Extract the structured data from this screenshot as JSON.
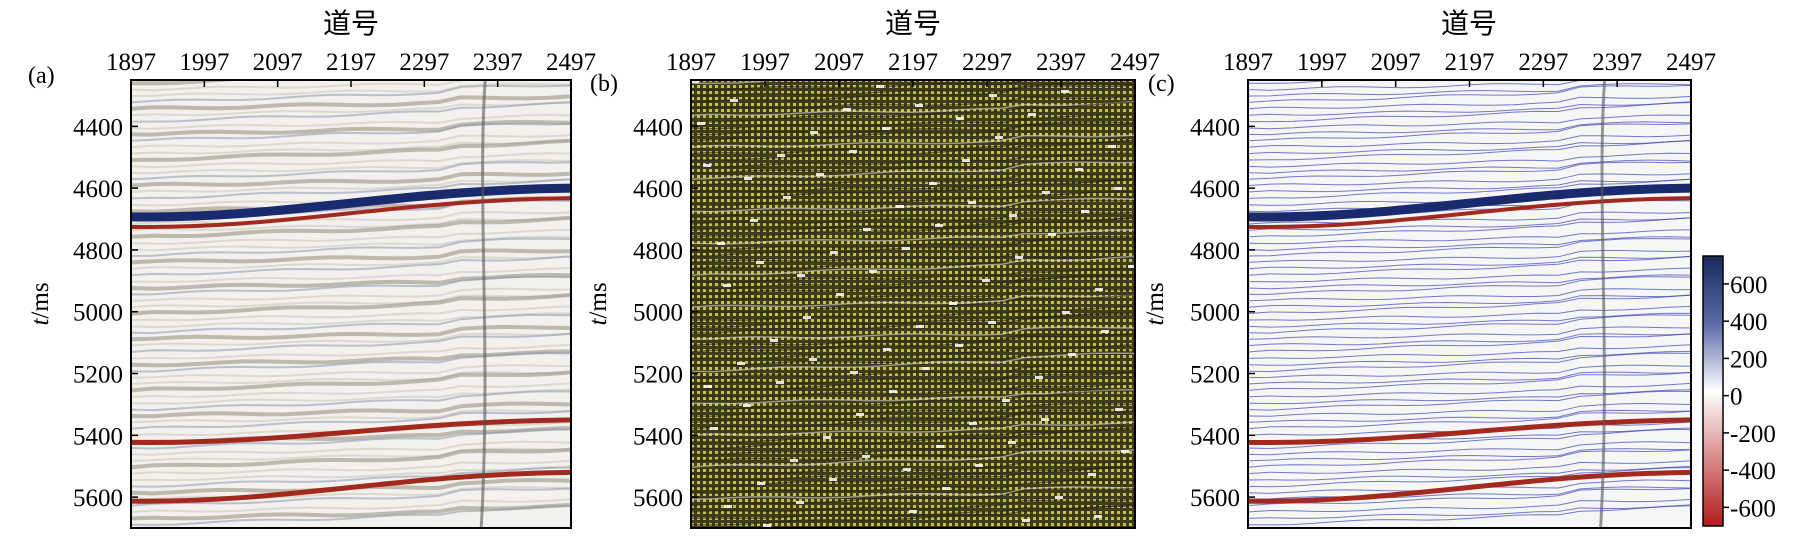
{
  "chart_data": [
    {
      "type": "heatmap",
      "panel": "(a)",
      "xlabel": "道号",
      "ylabel_italic": "t",
      "ylabel_rest": "/ms",
      "x_ticks": [
        1897,
        1997,
        2097,
        2197,
        2297,
        2397,
        2497
      ],
      "y_ticks": [
        4400,
        4600,
        4800,
        5000,
        5200,
        5400,
        5600
      ],
      "xlim": [
        1897,
        2497
      ],
      "ylim": [
        4250,
        5700
      ],
      "style": "wiggle-free color section",
      "events_ms": [
        {
          "t": 4680,
          "dip": -80,
          "amplitude": 700
        },
        {
          "t": 5410,
          "dip": -60,
          "amplitude": -500
        },
        {
          "t": 5600,
          "dip": -80,
          "amplitude": -600
        }
      ]
    },
    {
      "type": "heatmap",
      "panel": "(b)",
      "xlabel": "道号",
      "ylabel_italic": "t",
      "ylabel_rest": "/ms",
      "x_ticks": [
        1897,
        1997,
        2097,
        2197,
        2297,
        2397,
        2497
      ],
      "y_ticks": [
        4400,
        4600,
        4800,
        5000,
        5200,
        5400,
        5600
      ],
      "xlim": [
        1897,
        2497
      ],
      "ylim": [
        4250,
        5700
      ],
      "style": "dense yellow-grid overlay"
    },
    {
      "type": "heatmap",
      "panel": "(c)",
      "xlabel": "道号",
      "ylabel_italic": "t",
      "ylabel_rest": "/ms",
      "x_ticks": [
        1897,
        1997,
        2097,
        2197,
        2297,
        2397,
        2497
      ],
      "y_ticks": [
        4400,
        4600,
        4800,
        5000,
        5200,
        5400,
        5600
      ],
      "xlim": [
        1897,
        2497
      ],
      "ylim": [
        4250,
        5700
      ],
      "style": "color section with blue horizon contours",
      "colorbar": {
        "ticks": [
          600,
          400,
          200,
          0,
          -200,
          -400,
          -600
        ],
        "range": [
          -700,
          750
        ],
        "colors": {
          "high": "#1a2a5e",
          "mid": "#ffffff",
          "low": "#b31b1b"
        }
      }
    }
  ]
}
